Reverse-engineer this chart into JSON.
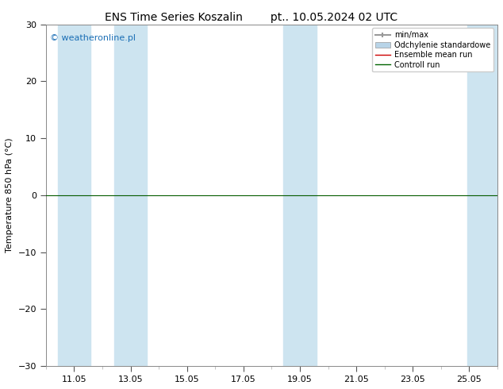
{
  "title_left": "ENS Time Series Koszalin",
  "title_right": "pt.. 10.05.2024 02 UTC",
  "ylabel": "Temperature 850 hPa (°C)",
  "ylim": [
    -30,
    30
  ],
  "yticks": [
    -30,
    -20,
    -10,
    0,
    10,
    20,
    30
  ],
  "x_tick_positions": [
    11,
    13,
    15,
    17,
    19,
    21,
    23,
    25
  ],
  "x_tick_labels": [
    "11.05",
    "13.05",
    "15.05",
    "17.05",
    "19.05",
    "21.05",
    "23.05",
    "25.05"
  ],
  "xlim": [
    10.0,
    26.0
  ],
  "watermark": "© weatheronline.pl",
  "watermark_color": "#1a6eb5",
  "background_color": "#ffffff",
  "plot_bg_color": "#ffffff",
  "shaded_bands": [
    {
      "x_start": 10.42,
      "x_end": 11.58,
      "color": "#d6eaf8"
    },
    {
      "x_start": 12.42,
      "x_end": 13.58,
      "color": "#d6eaf8"
    },
    {
      "x_start": 18.42,
      "x_end": 19.0,
      "color": "#d6eaf8"
    },
    {
      "x_start": 19.0,
      "x_end": 19.58,
      "color": "#d6eaf8"
    },
    {
      "x_start": 25.0,
      "x_end": 26.0,
      "color": "#d6eaf8"
    }
  ],
  "zero_line_color": "#000000",
  "zero_line_y": 0,
  "ensemble_mean_color": "#cc0000",
  "control_run_color": "#006400",
  "min_max_color": "#999999",
  "std_dev_color": "#b8d4e8",
  "legend_labels": [
    "min/max",
    "Odchylenie standardowe",
    "Ensemble mean run",
    "Controll run"
  ],
  "legend_line_colors": [
    "#999999",
    "#b8d4e8",
    "#cc0000",
    "#006400"
  ],
  "title_fontsize": 10,
  "axis_label_fontsize": 8,
  "tick_fontsize": 8,
  "legend_fontsize": 7,
  "watermark_fontsize": 8
}
